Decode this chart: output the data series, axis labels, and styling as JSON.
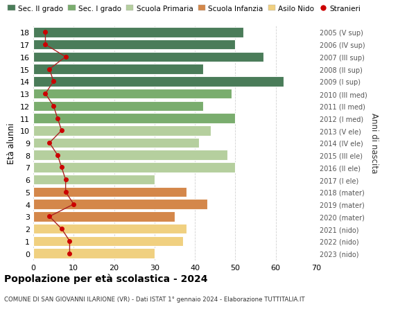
{
  "ages": [
    18,
    17,
    16,
    15,
    14,
    13,
    12,
    11,
    10,
    9,
    8,
    7,
    6,
    5,
    4,
    3,
    2,
    1,
    0
  ],
  "bar_values": [
    52,
    50,
    57,
    42,
    62,
    49,
    42,
    50,
    44,
    41,
    48,
    50,
    30,
    38,
    43,
    35,
    38,
    37,
    30
  ],
  "bar_colors": [
    "#4a7c59",
    "#4a7c59",
    "#4a7c59",
    "#4a7c59",
    "#4a7c59",
    "#7aad6e",
    "#7aad6e",
    "#7aad6e",
    "#b5cf9e",
    "#b5cf9e",
    "#b5cf9e",
    "#b5cf9e",
    "#b5cf9e",
    "#d4874a",
    "#d4874a",
    "#d4874a",
    "#f0d080",
    "#f0d080",
    "#f0d080"
  ],
  "stranieri_values": [
    3,
    3,
    8,
    4,
    5,
    3,
    5,
    6,
    7,
    4,
    6,
    7,
    8,
    8,
    10,
    4,
    7,
    9,
    9
  ],
  "right_labels": [
    "2005 (V sup)",
    "2006 (IV sup)",
    "2007 (III sup)",
    "2008 (II sup)",
    "2009 (I sup)",
    "2010 (III med)",
    "2011 (II med)",
    "2012 (I med)",
    "2013 (V ele)",
    "2014 (IV ele)",
    "2015 (III ele)",
    "2016 (II ele)",
    "2017 (I ele)",
    "2018 (mater)",
    "2019 (mater)",
    "2020 (mater)",
    "2021 (nido)",
    "2022 (nido)",
    "2023 (nido)"
  ],
  "legend_labels": [
    "Sec. II grado",
    "Sec. I grado",
    "Scuola Primaria",
    "Scuola Infanzia",
    "Asilo Nido",
    "Stranieri"
  ],
  "legend_colors": [
    "#4a7c59",
    "#7aad6e",
    "#b5cf9e",
    "#d4874a",
    "#f0d080",
    "#cc0000"
  ],
  "ylabel": "Età alunni",
  "right_ylabel": "Anni di nascita",
  "title": "Popolazione per età scolastica - 2024",
  "subtitle": "COMUNE DI SAN GIOVANNI ILARIONE (VR) - Dati ISTAT 1° gennaio 2024 - Elaborazione TUTTITALIA.IT",
  "xlim": [
    0,
    70
  ],
  "xticks": [
    0,
    10,
    20,
    30,
    40,
    50,
    60,
    70
  ],
  "bg_color": "#ffffff",
  "bar_height": 0.82,
  "stranieri_color": "#cc0000",
  "stranieri_line_color": "#aa2222"
}
